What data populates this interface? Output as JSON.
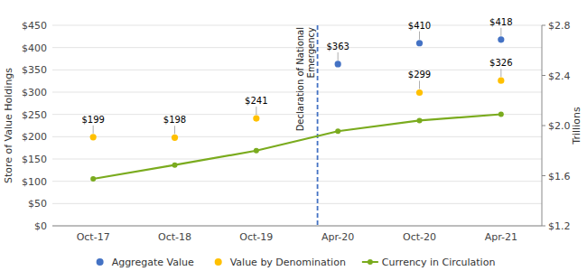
{
  "chart_data": {
    "type": "scatter",
    "categories": [
      "Oct-17",
      "Oct-18",
      "Oct-19",
      "Apr-20",
      "Oct-20",
      "Apr-21"
    ],
    "series": [
      {
        "name": "Aggregate Value",
        "type": "scatter",
        "marker": "circle",
        "color": "#4472C4",
        "data_labels": true,
        "values": [
          null,
          null,
          null,
          363,
          410,
          418
        ],
        "value_labels": [
          null,
          null,
          null,
          "$363",
          "$410",
          "$418"
        ]
      },
      {
        "name": "Value by Denomination",
        "type": "scatter",
        "marker": "circle",
        "color": "#FFC000",
        "data_labels": true,
        "values": [
          199,
          198,
          241,
          null,
          299,
          326
        ],
        "value_labels": [
          "$199",
          "$198",
          "$241",
          null,
          "$299",
          "$326"
        ]
      },
      {
        "name": "Currency in Circulation",
        "type": "line",
        "marker": "circle",
        "line_style": "solid",
        "color": "#7AAB1E",
        "axis": "y2",
        "values": [
          1.575,
          1.685,
          1.8,
          1.955,
          2.04,
          2.09
        ]
      }
    ],
    "y_label": "Store of Value Holdings",
    "y2_label": "Trillions",
    "ylim": [
      0,
      450
    ],
    "yticks": [
      {
        "value": 0,
        "label": "$0"
      },
      {
        "value": 50,
        "label": "$50"
      },
      {
        "value": 100,
        "label": "$100"
      },
      {
        "value": 150,
        "label": "$150"
      },
      {
        "value": 200,
        "label": "$200"
      },
      {
        "value": 250,
        "label": "$250"
      },
      {
        "value": 300,
        "label": "$300"
      },
      {
        "value": 350,
        "label": "$350"
      },
      {
        "value": 400,
        "label": "$400"
      },
      {
        "value": 450,
        "label": "$450"
      }
    ],
    "y2lim": [
      1.2,
      2.8
    ],
    "y2ticks": [
      {
        "value": 1.2,
        "label": "$1.2"
      },
      {
        "value": 1.6,
        "label": "$1.6"
      },
      {
        "value": 2.0,
        "label": "$2.0"
      },
      {
        "value": 2.4,
        "label": "$2.4"
      },
      {
        "value": 2.8,
        "label": "$2.8"
      }
    ],
    "annotations": [
      {
        "type": "vline",
        "x": 2.75,
        "color": "#4472C4",
        "line_style": "dashed",
        "labels": [
          "Declaration of National",
          "Emergency"
        ]
      }
    ],
    "grid": true,
    "legend": "bottom"
  }
}
